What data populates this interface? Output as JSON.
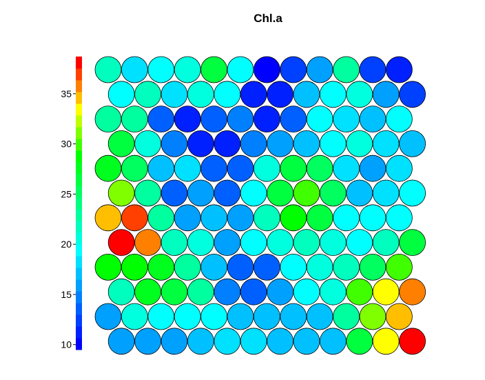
{
  "chart_data": {
    "type": "heatmap",
    "subtype": "hexagonal-som-property-map",
    "title": "Chl.a",
    "xlabel": "",
    "ylabel": "",
    "grid": false,
    "colorbar": {
      "placement": "left",
      "range": [
        9.5,
        38.7
      ],
      "ticks": [
        10,
        15,
        20,
        25,
        30,
        35
      ],
      "palette": [
        "#0000ff",
        "#0020ff",
        "#0040ff",
        "#0060ff",
        "#0080ff",
        "#00a0ff",
        "#00c0ff",
        "#00e0ff",
        "#00ffff",
        "#00ffdf",
        "#00ffbf",
        "#00ff9f",
        "#00ff7f",
        "#00ff5f",
        "#00ff3f",
        "#00ff1f",
        "#00ff00",
        "#40ff00",
        "#80ff00",
        "#bfff00",
        "#ffff00",
        "#ffbf00",
        "#ff8000",
        "#ff4000",
        "#ff0000"
      ]
    },
    "grid_size": {
      "columns": 12,
      "rows": 12
    },
    "rows_top_to_bottom": [
      [
        21.5,
        18.5,
        19.5,
        20.5,
        27.0,
        19.5,
        10.5,
        13.0,
        15.5,
        22.5,
        13.0,
        11.0
      ],
      [
        19.5,
        22.0,
        18.5,
        20.5,
        20.0,
        11.0,
        11.0,
        17.5,
        19.0,
        20.5,
        15.5,
        13.0
      ],
      [
        22.5,
        23.0,
        14.0,
        11.0,
        14.0,
        14.5,
        11.5,
        14.0,
        19.0,
        18.5,
        17.5,
        20.0
      ],
      [
        27.0,
        20.5,
        14.5,
        11.5,
        11.5,
        14.5,
        16.0,
        17.0,
        19.0,
        20.5,
        18.0,
        17.5
      ],
      [
        28.0,
        25.5,
        17.0,
        18.0,
        13.5,
        14.0,
        20.5,
        26.0,
        25.5,
        18.5,
        16.0,
        18.0
      ],
      [
        31.0,
        23.0,
        13.5,
        15.5,
        14.0,
        19.0,
        26.5,
        29.5,
        25.5,
        17.0,
        18.5,
        19.0
      ],
      [
        35.0,
        37.5,
        22.5,
        16.5,
        17.0,
        16.0,
        22.0,
        28.5,
        27.0,
        20.0,
        19.0,
        19.0
      ],
      [
        38.5,
        35.5,
        21.5,
        20.5,
        16.0,
        19.0,
        20.5,
        22.0,
        21.0,
        19.5,
        21.5,
        26.5
      ],
      [
        28.5,
        29.0,
        27.5,
        22.5,
        17.5,
        13.5,
        14.0,
        19.0,
        20.5,
        21.5,
        25.0,
        29.5
      ],
      [
        22.0,
        28.0,
        26.0,
        22.5,
        15.0,
        14.0,
        16.0,
        19.0,
        20.5,
        29.5,
        33.5,
        35.5
      ],
      [
        15.5,
        20.5,
        20.0,
        19.5,
        19.5,
        17.0,
        17.5,
        17.5,
        17.0,
        22.5,
        31.0,
        35.0
      ],
      [
        15.5,
        15.5,
        15.5,
        17.5,
        18.5,
        18.5,
        17.5,
        17.5,
        17.5,
        27.0,
        34.0,
        38.0
      ]
    ]
  }
}
